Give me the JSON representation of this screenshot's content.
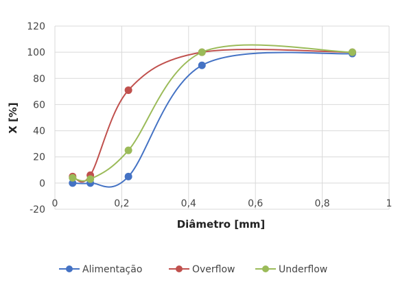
{
  "chart_data": {
    "type": "line",
    "smooth": true,
    "xlabel": "Diâmetro [mm]",
    "ylabel": "X [%]",
    "xlim": [
      0,
      1
    ],
    "ylim": [
      -20,
      120
    ],
    "x_ticks": [
      0,
      0.2,
      0.4,
      0.6,
      0.8,
      1
    ],
    "x_tick_labels": [
      "0",
      "0,2",
      "0,4",
      "0,6",
      "0,8",
      "1"
    ],
    "y_ticks": [
      -20,
      0,
      20,
      40,
      60,
      80,
      100,
      120
    ],
    "y_tick_labels": [
      "-20",
      "0",
      "20",
      "40",
      "60",
      "80",
      "100",
      "120"
    ],
    "grid": {
      "vertical": true,
      "horizontal": true
    },
    "legend_position": "bottom",
    "series": [
      {
        "name": "Alimentação",
        "color": "#4472C4",
        "x": [
          0.053,
          0.106,
          0.22,
          0.44,
          0.89
        ],
        "y": [
          0,
          0,
          5,
          90,
          99
        ]
      },
      {
        "name": "Overflow",
        "color": "#C0504D",
        "x": [
          0.053,
          0.106,
          0.22,
          0.44,
          0.89
        ],
        "y": [
          5,
          6,
          71,
          100,
          100
        ]
      },
      {
        "name": "Underflow",
        "color": "#9BBB59",
        "x": [
          0.053,
          0.106,
          0.22,
          0.44,
          0.89
        ],
        "y": [
          4,
          3,
          25,
          100,
          100
        ]
      }
    ]
  }
}
